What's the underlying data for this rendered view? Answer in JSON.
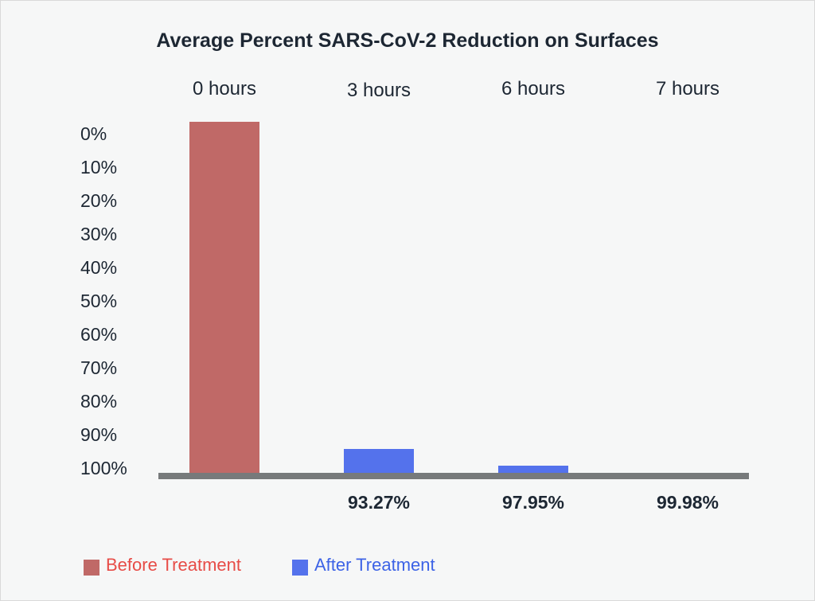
{
  "chart_data": {
    "type": "bar",
    "title": "Average Percent SARS-CoV-2 Reduction on Surfaces",
    "categories": [
      "0 hours",
      "3 hours",
      "6 hours",
      "7 hours"
    ],
    "y_ticks": [
      "0%",
      "10%",
      "20%",
      "30%",
      "40%",
      "50%",
      "60%",
      "70%",
      "80%",
      "90%",
      "100%"
    ],
    "y_axis_inverted": true,
    "ylim": [
      0,
      100
    ],
    "series": [
      {
        "name": "Before Treatment",
        "color": "#c06967",
        "values": [
          0,
          null,
          null,
          null
        ]
      },
      {
        "name": "After Treatment",
        "color": "#5472ec",
        "values": [
          null,
          93.27,
          97.95,
          99.98
        ]
      }
    ],
    "data_labels": [
      "",
      "93.27%",
      "97.95%",
      "99.98%"
    ],
    "legend": {
      "position": "bottom-left",
      "items": [
        {
          "label": "Before Treatment",
          "color": "#c06967",
          "text_color": "#e74c47"
        },
        {
          "label": "After Treatment",
          "color": "#5472ec",
          "text_color": "#3d63e6"
        }
      ]
    },
    "grid": false
  }
}
